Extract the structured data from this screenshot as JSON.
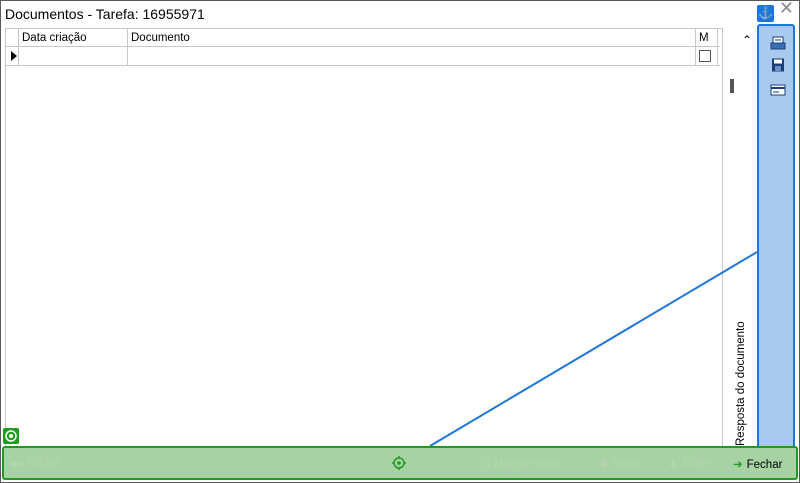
{
  "window": {
    "title": "Documentos - Tarefa: 16955971",
    "close_glyph": "✕"
  },
  "grid": {
    "columns": [
      "Data criação",
      "Documento",
      "M"
    ],
    "rows": [
      {
        "data_criacao": "",
        "documento": "",
        "marcado": false
      }
    ]
  },
  "side_panel": {
    "label": "Resposta do documento",
    "anchor_icon": "anchor-icon",
    "tools": [
      "scan-icon",
      "save-icon",
      "card-icon"
    ]
  },
  "toolbar": {
    "excluir": "Excluir",
    "marcar_todos": "Marcar todos",
    "novo": "Novo",
    "exibir": "Exibir",
    "fechar": "Fechar"
  },
  "colors": {
    "accent_blue": "#1e75dc",
    "panel_blue": "#a9c9ee",
    "accent_green": "#1f9b1f",
    "bar_green": "#a7d3a4"
  }
}
